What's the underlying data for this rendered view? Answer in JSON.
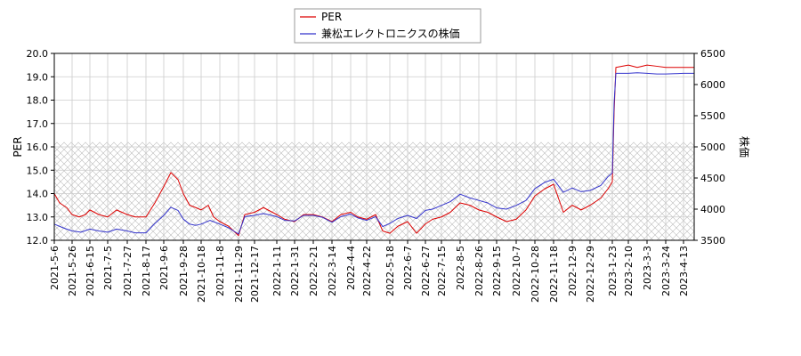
{
  "chart_data": {
    "type": "line",
    "title": "",
    "xlabel": "",
    "ylabel_left": "PER",
    "ylabel_right": "株価",
    "ylim_left": [
      12.0,
      20.0
    ],
    "ylim_right": [
      3500,
      6500
    ],
    "yticks_left": [
      "12.0",
      "13.0",
      "14.0",
      "15.0",
      "16.0",
      "17.0",
      "18.0",
      "19.0",
      "20.0"
    ],
    "yticks_right": [
      "3500",
      "4000",
      "4500",
      "5000",
      "5500",
      "6000",
      "6500"
    ],
    "x_ticks": [
      "2021-5-6",
      "2021-5-26",
      "2021-6-15",
      "2021-7-5",
      "2021-7-27",
      "2021-8-17",
      "2021-9-6",
      "2021-9-28",
      "2021-10-18",
      "2021-11-8",
      "2021-11-29",
      "2021-12-17",
      "2022-1-11",
      "2022-1-31",
      "2022-2-21",
      "2022-3-14",
      "2022-4-4",
      "2022-4-22",
      "2022-5-18",
      "2022-6-7",
      "2022-6-27",
      "2022-7-15",
      "2022-8-5",
      "2022-8-26",
      "2022-9-15",
      "2022-10-7",
      "2022-10-28",
      "2022-11-18",
      "2022-12-9",
      "2022-12-29",
      "2023-1-23",
      "2023-2-10",
      "2023-3-3",
      "2023-3-24",
      "2023-4-13"
    ],
    "x_range": [
      "2021-5-6",
      "2023-4-25"
    ],
    "grid": true,
    "hatched_band_left": [
      12.0,
      16.2
    ],
    "legend_position": "top-center",
    "series": [
      {
        "name": "PER",
        "color": "#dd0000",
        "axis": "left",
        "points": [
          [
            "2021-5-6",
            14.0
          ],
          [
            "2021-5-12",
            13.6
          ],
          [
            "2021-5-20",
            13.4
          ],
          [
            "2021-5-26",
            13.1
          ],
          [
            "2021-6-3",
            13.0
          ],
          [
            "2021-6-10",
            13.1
          ],
          [
            "2021-6-15",
            13.3
          ],
          [
            "2021-6-25",
            13.1
          ],
          [
            "2021-7-5",
            13.0
          ],
          [
            "2021-7-15",
            13.3
          ],
          [
            "2021-7-27",
            13.1
          ],
          [
            "2021-8-5",
            13.0
          ],
          [
            "2021-8-17",
            13.0
          ],
          [
            "2021-8-27",
            13.6
          ],
          [
            "2021-9-6",
            14.3
          ],
          [
            "2021-9-14",
            14.9
          ],
          [
            "2021-9-22",
            14.6
          ],
          [
            "2021-9-28",
            14.0
          ],
          [
            "2021-10-5",
            13.5
          ],
          [
            "2021-10-12",
            13.4
          ],
          [
            "2021-10-18",
            13.3
          ],
          [
            "2021-10-26",
            13.5
          ],
          [
            "2021-11-1",
            13.0
          ],
          [
            "2021-11-8",
            12.8
          ],
          [
            "2021-11-18",
            12.6
          ],
          [
            "2021-11-29",
            12.2
          ],
          [
            "2021-12-6",
            13.1
          ],
          [
            "2021-12-17",
            13.2
          ],
          [
            "2021-12-27",
            13.4
          ],
          [
            "2022-1-11",
            13.1
          ],
          [
            "2022-1-20",
            12.9
          ],
          [
            "2022-1-31",
            12.8
          ],
          [
            "2022-2-10",
            13.1
          ],
          [
            "2022-2-21",
            13.1
          ],
          [
            "2022-3-3",
            13.0
          ],
          [
            "2022-3-14",
            12.8
          ],
          [
            "2022-3-24",
            13.1
          ],
          [
            "2022-4-4",
            13.2
          ],
          [
            "2022-4-12",
            13.0
          ],
          [
            "2022-4-22",
            12.9
          ],
          [
            "2022-5-2",
            13.1
          ],
          [
            "2022-5-10",
            12.4
          ],
          [
            "2022-5-18",
            12.3
          ],
          [
            "2022-5-27",
            12.6
          ],
          [
            "2022-6-7",
            12.8
          ],
          [
            "2022-6-17",
            12.3
          ],
          [
            "2022-6-27",
            12.7
          ],
          [
            "2022-7-5",
            12.9
          ],
          [
            "2022-7-15",
            13.0
          ],
          [
            "2022-7-25",
            13.2
          ],
          [
            "2022-8-5",
            13.6
          ],
          [
            "2022-8-16",
            13.5
          ],
          [
            "2022-8-26",
            13.3
          ],
          [
            "2022-9-5",
            13.2
          ],
          [
            "2022-9-15",
            13.0
          ],
          [
            "2022-9-26",
            12.8
          ],
          [
            "2022-10-7",
            12.9
          ],
          [
            "2022-10-18",
            13.3
          ],
          [
            "2022-10-28",
            13.9
          ],
          [
            "2022-11-8",
            14.2
          ],
          [
            "2022-11-18",
            14.4
          ],
          [
            "2022-11-29",
            13.2
          ],
          [
            "2022-12-9",
            13.5
          ],
          [
            "2022-12-19",
            13.3
          ],
          [
            "2022-12-29",
            13.5
          ],
          [
            "2023-1-10",
            13.8
          ],
          [
            "2023-1-18",
            14.2
          ],
          [
            "2023-1-23",
            14.5
          ],
          [
            "2023-1-25",
            17.5
          ],
          [
            "2023-1-27",
            19.4
          ],
          [
            "2023-2-10",
            19.5
          ],
          [
            "2023-2-20",
            19.4
          ],
          [
            "2023-3-3",
            19.5
          ],
          [
            "2023-3-14",
            19.45
          ],
          [
            "2023-3-24",
            19.4
          ],
          [
            "2023-4-3",
            19.4
          ],
          [
            "2023-4-13",
            19.4
          ],
          [
            "2023-4-25",
            19.4
          ]
        ]
      },
      {
        "name": "兼松エレクトロニクスの株価",
        "color": "#3333cc",
        "axis": "right",
        "points": [
          [
            "2021-5-6",
            3760
          ],
          [
            "2021-5-16",
            3700
          ],
          [
            "2021-5-26",
            3650
          ],
          [
            "2021-6-5",
            3630
          ],
          [
            "2021-6-15",
            3680
          ],
          [
            "2021-6-25",
            3650
          ],
          [
            "2021-7-5",
            3630
          ],
          [
            "2021-7-15",
            3680
          ],
          [
            "2021-7-27",
            3650
          ],
          [
            "2021-8-5",
            3620
          ],
          [
            "2021-8-17",
            3620
          ],
          [
            "2021-8-27",
            3770
          ],
          [
            "2021-9-6",
            3900
          ],
          [
            "2021-9-14",
            4030
          ],
          [
            "2021-9-22",
            3980
          ],
          [
            "2021-9-28",
            3840
          ],
          [
            "2021-10-5",
            3760
          ],
          [
            "2021-10-12",
            3740
          ],
          [
            "2021-10-18",
            3760
          ],
          [
            "2021-10-28",
            3820
          ],
          [
            "2021-11-8",
            3760
          ],
          [
            "2021-11-18",
            3700
          ],
          [
            "2021-11-29",
            3600
          ],
          [
            "2021-12-6",
            3880
          ],
          [
            "2021-12-17",
            3900
          ],
          [
            "2021-12-27",
            3930
          ],
          [
            "2022-1-11",
            3880
          ],
          [
            "2022-1-20",
            3820
          ],
          [
            "2022-1-31",
            3810
          ],
          [
            "2022-2-10",
            3900
          ],
          [
            "2022-2-21",
            3900
          ],
          [
            "2022-3-3",
            3870
          ],
          [
            "2022-3-14",
            3790
          ],
          [
            "2022-3-24",
            3880
          ],
          [
            "2022-4-4",
            3920
          ],
          [
            "2022-4-12",
            3860
          ],
          [
            "2022-4-22",
            3820
          ],
          [
            "2022-5-2",
            3880
          ],
          [
            "2022-5-10",
            3720
          ],
          [
            "2022-5-18",
            3770
          ],
          [
            "2022-5-27",
            3850
          ],
          [
            "2022-6-7",
            3900
          ],
          [
            "2022-6-17",
            3850
          ],
          [
            "2022-6-27",
            3980
          ],
          [
            "2022-7-5",
            4000
          ],
          [
            "2022-7-15",
            4060
          ],
          [
            "2022-7-25",
            4120
          ],
          [
            "2022-8-5",
            4240
          ],
          [
            "2022-8-16",
            4180
          ],
          [
            "2022-8-26",
            4140
          ],
          [
            "2022-9-5",
            4100
          ],
          [
            "2022-9-15",
            4020
          ],
          [
            "2022-9-26",
            4000
          ],
          [
            "2022-10-7",
            4060
          ],
          [
            "2022-10-18",
            4140
          ],
          [
            "2022-10-28",
            4330
          ],
          [
            "2022-11-8",
            4430
          ],
          [
            "2022-11-18",
            4480
          ],
          [
            "2022-11-29",
            4270
          ],
          [
            "2022-12-9",
            4340
          ],
          [
            "2022-12-19",
            4280
          ],
          [
            "2022-12-29",
            4300
          ],
          [
            "2023-1-10",
            4380
          ],
          [
            "2023-1-18",
            4520
          ],
          [
            "2023-1-23",
            4580
          ],
          [
            "2023-1-25",
            5700
          ],
          [
            "2023-1-27",
            6180
          ],
          [
            "2023-2-10",
            6180
          ],
          [
            "2023-2-20",
            6190
          ],
          [
            "2023-3-3",
            6180
          ],
          [
            "2023-3-14",
            6170
          ],
          [
            "2023-3-24",
            6170
          ],
          [
            "2023-4-3",
            6175
          ],
          [
            "2023-4-13",
            6180
          ],
          [
            "2023-4-25",
            6180
          ]
        ]
      }
    ]
  }
}
